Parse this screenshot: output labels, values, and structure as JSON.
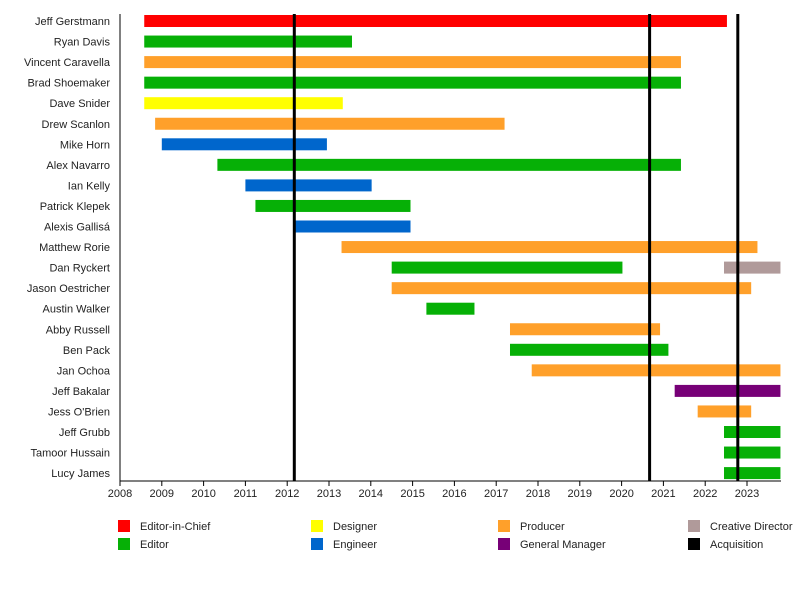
{
  "chart_data": {
    "type": "bar",
    "subtype": "timeline",
    "xlim": [
      2008,
      2023.8
    ],
    "xticks": [
      "2008",
      "2009",
      "2010",
      "2011",
      "2012",
      "2013",
      "2014",
      "2015",
      "2016",
      "2017",
      "2018",
      "2019",
      "2020",
      "2021",
      "2022",
      "2023"
    ],
    "grid": false,
    "legend_placement": "bottom",
    "roles": [
      {
        "name": "Editor-in-Chief",
        "color": "#ff0000"
      },
      {
        "name": "Editor",
        "color": "#06b006"
      },
      {
        "name": "Designer",
        "color": "#ffff00"
      },
      {
        "name": "Engineer",
        "color": "#0066cc"
      },
      {
        "name": "Producer",
        "color": "#ffa02a"
      },
      {
        "name": "General Manager",
        "color": "#770077"
      },
      {
        "name": "Creative Director",
        "color": "#b09a9a"
      },
      {
        "name": "Acquisition",
        "color": "#000000"
      }
    ],
    "people": [
      {
        "name": "Jeff Gerstmann",
        "spans": [
          {
            "role": "Editor-in-Chief",
            "start": 2008.58,
            "end": 2022.52
          }
        ]
      },
      {
        "name": "Ryan Davis",
        "spans": [
          {
            "role": "Editor",
            "start": 2008.58,
            "end": 2013.55
          }
        ]
      },
      {
        "name": "Vincent Caravella",
        "spans": [
          {
            "role": "Producer",
            "start": 2008.58,
            "end": 2021.42
          }
        ]
      },
      {
        "name": "Brad Shoemaker",
        "spans": [
          {
            "role": "Editor",
            "start": 2008.58,
            "end": 2021.42
          }
        ]
      },
      {
        "name": "Dave Snider",
        "spans": [
          {
            "role": "Designer",
            "start": 2008.58,
            "end": 2013.33
          }
        ]
      },
      {
        "name": "Drew Scanlon",
        "spans": [
          {
            "role": "Producer",
            "start": 2008.84,
            "end": 2017.2
          }
        ]
      },
      {
        "name": "Mike Horn",
        "spans": [
          {
            "role": "Engineer",
            "start": 2009.0,
            "end": 2012.95
          }
        ]
      },
      {
        "name": "Alex Navarro",
        "spans": [
          {
            "role": "Editor",
            "start": 2010.33,
            "end": 2021.42
          }
        ]
      },
      {
        "name": "Ian Kelly",
        "spans": [
          {
            "role": "Engineer",
            "start": 2011.0,
            "end": 2014.02
          }
        ]
      },
      {
        "name": "Patrick Klepek",
        "spans": [
          {
            "role": "Editor",
            "start": 2011.24,
            "end": 2014.95
          }
        ]
      },
      {
        "name": "Alexis Gallisá",
        "spans": [
          {
            "role": "Engineer",
            "start": 2012.17,
            "end": 2014.95
          }
        ]
      },
      {
        "name": "Matthew Rorie",
        "spans": [
          {
            "role": "Producer",
            "start": 2013.3,
            "end": 2023.25
          }
        ]
      },
      {
        "name": "Dan Ryckert",
        "spans": [
          {
            "role": "Editor",
            "start": 2014.5,
            "end": 2020.02
          },
          {
            "role": "Creative Director",
            "start": 2022.45,
            "end": 2023.8
          }
        ]
      },
      {
        "name": "Jason Oestricher",
        "spans": [
          {
            "role": "Producer",
            "start": 2014.5,
            "end": 2023.1
          }
        ]
      },
      {
        "name": "Austin Walker",
        "spans": [
          {
            "role": "Editor",
            "start": 2015.33,
            "end": 2016.48
          }
        ]
      },
      {
        "name": "Abby Russell",
        "spans": [
          {
            "role": "Producer",
            "start": 2017.33,
            "end": 2020.92
          }
        ]
      },
      {
        "name": "Ben Pack",
        "spans": [
          {
            "role": "Editor",
            "start": 2017.33,
            "end": 2021.12
          }
        ]
      },
      {
        "name": "Jan Ochoa",
        "spans": [
          {
            "role": "Producer",
            "start": 2017.85,
            "end": 2023.8
          }
        ]
      },
      {
        "name": "Jeff Bakalar",
        "spans": [
          {
            "role": "General Manager",
            "start": 2021.27,
            "end": 2023.8
          }
        ]
      },
      {
        "name": "Jess O'Brien",
        "spans": [
          {
            "role": "Producer",
            "start": 2021.82,
            "end": 2023.1
          }
        ]
      },
      {
        "name": "Jeff Grubb",
        "spans": [
          {
            "role": "Editor",
            "start": 2022.45,
            "end": 2023.8
          }
        ]
      },
      {
        "name": "Tamoor Hussain",
        "spans": [
          {
            "role": "Editor",
            "start": 2022.45,
            "end": 2023.8
          }
        ]
      },
      {
        "name": "Lucy James",
        "spans": [
          {
            "role": "Editor",
            "start": 2022.45,
            "end": 2023.8
          }
        ]
      }
    ],
    "acquisitions": [
      2012.17,
      2020.67,
      2022.78
    ]
  }
}
